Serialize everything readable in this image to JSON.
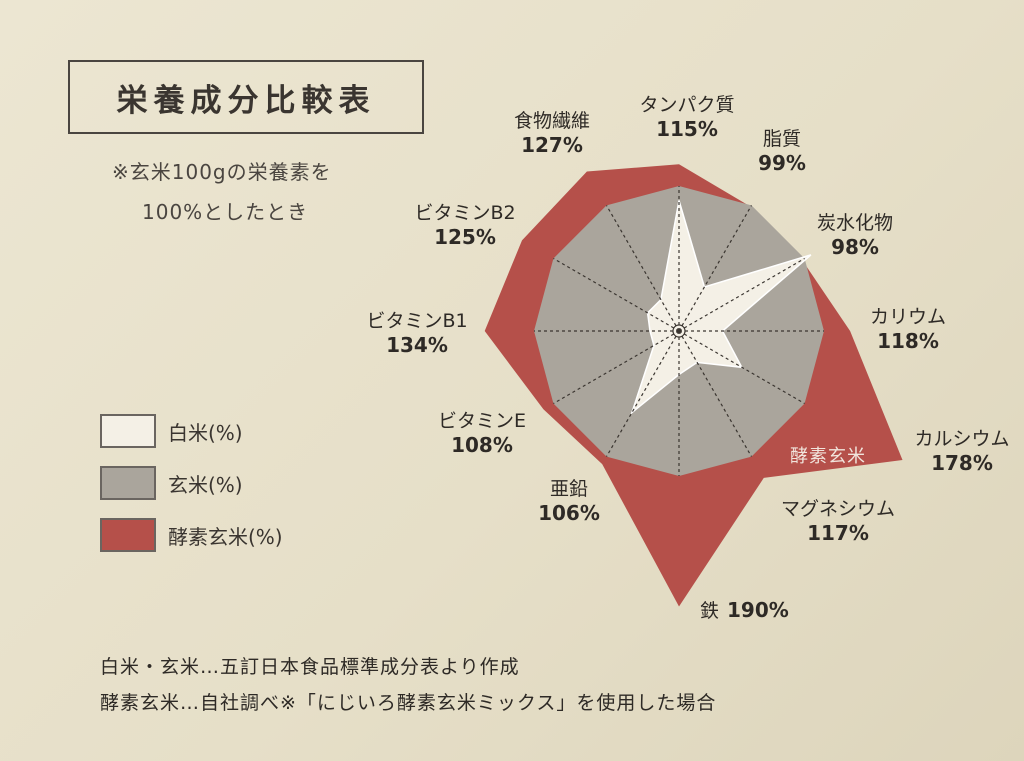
{
  "header": {
    "title": "栄養成分比較表"
  },
  "note": {
    "line1": "※玄米100gの栄養素を",
    "line2": "100%としたとき"
  },
  "legend": [
    {
      "label": "白米(%)",
      "color": "#f4f0e6"
    },
    {
      "label": "玄米(%)",
      "color": "#aaa59c"
    },
    {
      "label": "酵素玄米(%)",
      "color": "#b5504a"
    }
  ],
  "footer": {
    "line1": "白米・玄米…五訂日本食品標準成分表より作成",
    "line2": "酵素玄米…自社調べ※「にじいろ酵素玄米ミックス」を使用した場合"
  },
  "chart_data": {
    "type": "radar",
    "title": "栄養成分比較表",
    "categories": [
      "タンパク質",
      "脂質",
      "炭水化物",
      "カリウム",
      "カルシウム",
      "マグネシウム",
      "鉄",
      "亜鉛",
      "ビタミンE",
      "ビタミンB1",
      "ビタミンB2",
      "食物繊維"
    ],
    "series": [
      {
        "name": "白米(%)",
        "values": [
          90,
          35,
          105,
          30,
          50,
          25,
          30,
          65,
          20,
          20,
          25,
          25
        ],
        "color": "#f4f0e6"
      },
      {
        "name": "玄米(%)",
        "values": [
          100,
          100,
          100,
          100,
          100,
          100,
          100,
          100,
          100,
          100,
          100,
          100
        ],
        "color": "#aaa59c"
      },
      {
        "name": "酵素玄米",
        "values": [
          115,
          99,
          98,
          118,
          178,
          117,
          190,
          106,
          108,
          134,
          125,
          127
        ],
        "color": "#b5504a"
      }
    ],
    "value_labels": [
      "115%",
      "99%",
      "98%",
      "118%",
      "178%",
      "117%",
      "190%",
      "106%",
      "108%",
      "134%",
      "125%",
      "127%"
    ],
    "rlim": [
      0,
      190
    ],
    "grid": true
  }
}
